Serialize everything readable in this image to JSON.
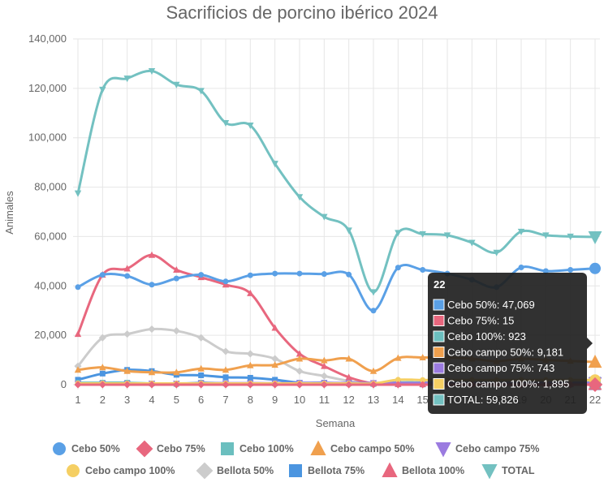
{
  "chart_data": {
    "type": "line",
    "title": "Sacrificios de porcino ibérico 2024",
    "xlabel": "Semana",
    "ylabel": "Animales",
    "ylim": [
      0,
      140000
    ],
    "yticks": [
      0,
      20000,
      40000,
      60000,
      80000,
      100000,
      120000,
      140000
    ],
    "grid": true,
    "legend_position": "bottom",
    "categories": [
      "1",
      "2",
      "3",
      "4",
      "5",
      "6",
      "7",
      "8",
      "9",
      "10",
      "11",
      "12",
      "13",
      "14",
      "15",
      "16",
      "17",
      "18",
      "19",
      "20",
      "21",
      "22"
    ],
    "series": [
      {
        "name": "Cebo 50%",
        "color": "#5aa0e6",
        "marker": "circle",
        "values": [
          39500,
          44500,
          44000,
          40500,
          43000,
          44500,
          41800,
          44300,
          45000,
          45000,
          44800,
          44600,
          30000,
          47400,
          46500,
          45000,
          42500,
          39500,
          47500,
          46000,
          46500,
          47069
        ]
      },
      {
        "name": "Cebo 75%",
        "color": "#e8677e",
        "marker": "diamond",
        "values": [
          0,
          0,
          0,
          0,
          0,
          0,
          0,
          0,
          0,
          0,
          0,
          0,
          0,
          0,
          0,
          0,
          0,
          0,
          0,
          0,
          0,
          15
        ]
      },
      {
        "name": "Cebo 100%",
        "color": "#6bbfbf",
        "marker": "square",
        "values": [
          800,
          800,
          800,
          500,
          300,
          800,
          500,
          500,
          500,
          600,
          500,
          500,
          300,
          900,
          900,
          900,
          900,
          900,
          900,
          900,
          900,
          923
        ]
      },
      {
        "name": "Cebo campo 50%",
        "color": "#f0a04e",
        "marker": "triangle",
        "values": [
          6000,
          7000,
          5500,
          5000,
          5000,
          6500,
          6000,
          7800,
          8000,
          10500,
          9800,
          10500,
          5500,
          10800,
          11000,
          11000,
          10500,
          9500,
          10500,
          10000,
          9600,
          9181
        ]
      },
      {
        "name": "Cebo campo 75%",
        "color": "#9b7be0",
        "marker": "triangle-down",
        "values": [
          500,
          500,
          500,
          500,
          500,
          600,
          600,
          600,
          600,
          700,
          700,
          700,
          700,
          700,
          700,
          700,
          700,
          700,
          700,
          700,
          700,
          743
        ]
      },
      {
        "name": "Cebo campo 100%",
        "color": "#f5cf63",
        "marker": "circle",
        "values": [
          500,
          500,
          500,
          500,
          500,
          500,
          500,
          500,
          500,
          500,
          500,
          500,
          500,
          2000,
          1900,
          1900,
          1900,
          1900,
          1900,
          1900,
          1900,
          1895
        ]
      },
      {
        "name": "Bellota 50%",
        "color": "#cccccc",
        "marker": "diamond",
        "values": [
          7500,
          19000,
          20500,
          22500,
          21800,
          19000,
          13500,
          12500,
          10500,
          5500,
          3500,
          1500,
          500,
          300,
          200,
          200,
          200,
          200,
          200,
          200,
          200,
          200
        ]
      },
      {
        "name": "Bellota 75%",
        "color": "#4b95e0",
        "marker": "square",
        "values": [
          2000,
          4500,
          6000,
          5500,
          4000,
          3800,
          3000,
          2800,
          2000,
          800,
          800,
          500,
          300,
          200,
          100,
          100,
          100,
          100,
          100,
          100,
          100,
          100
        ]
      },
      {
        "name": "Bellota 100%",
        "color": "#e8677e",
        "marker": "triangle",
        "values": [
          20500,
          44500,
          47000,
          52500,
          46500,
          43500,
          40500,
          37000,
          23000,
          12500,
          7500,
          3000,
          500,
          300,
          200,
          200,
          200,
          200,
          200,
          200,
          200,
          200
        ]
      },
      {
        "name": "TOTAL",
        "color": "#73c1c1",
        "marker": "triangle-down",
        "values": [
          77500,
          119500,
          124000,
          127000,
          121500,
          119000,
          106000,
          105000,
          89500,
          76000,
          68000,
          62500,
          37500,
          61500,
          61000,
          60500,
          57500,
          53500,
          62000,
          60500,
          60000,
          59826
        ]
      }
    ]
  },
  "tooltip": {
    "title": "22",
    "rows": [
      {
        "label": "Cebo 50%: 47,069",
        "color": "#5aa0e6"
      },
      {
        "label": "Cebo 75%: 15",
        "color": "#e8677e"
      },
      {
        "label": "Cebo 100%: 923",
        "color": "#6bbfbf"
      },
      {
        "label": "Cebo campo 50%: 9,181",
        "color": "#f0a04e"
      },
      {
        "label": "Cebo campo 75%: 743",
        "color": "#9b7be0"
      },
      {
        "label": "Cebo campo 100%: 1,895",
        "color": "#f5cf63"
      },
      {
        "label": "TOTAL: 59,826",
        "color": "#73c1c1"
      }
    ]
  }
}
